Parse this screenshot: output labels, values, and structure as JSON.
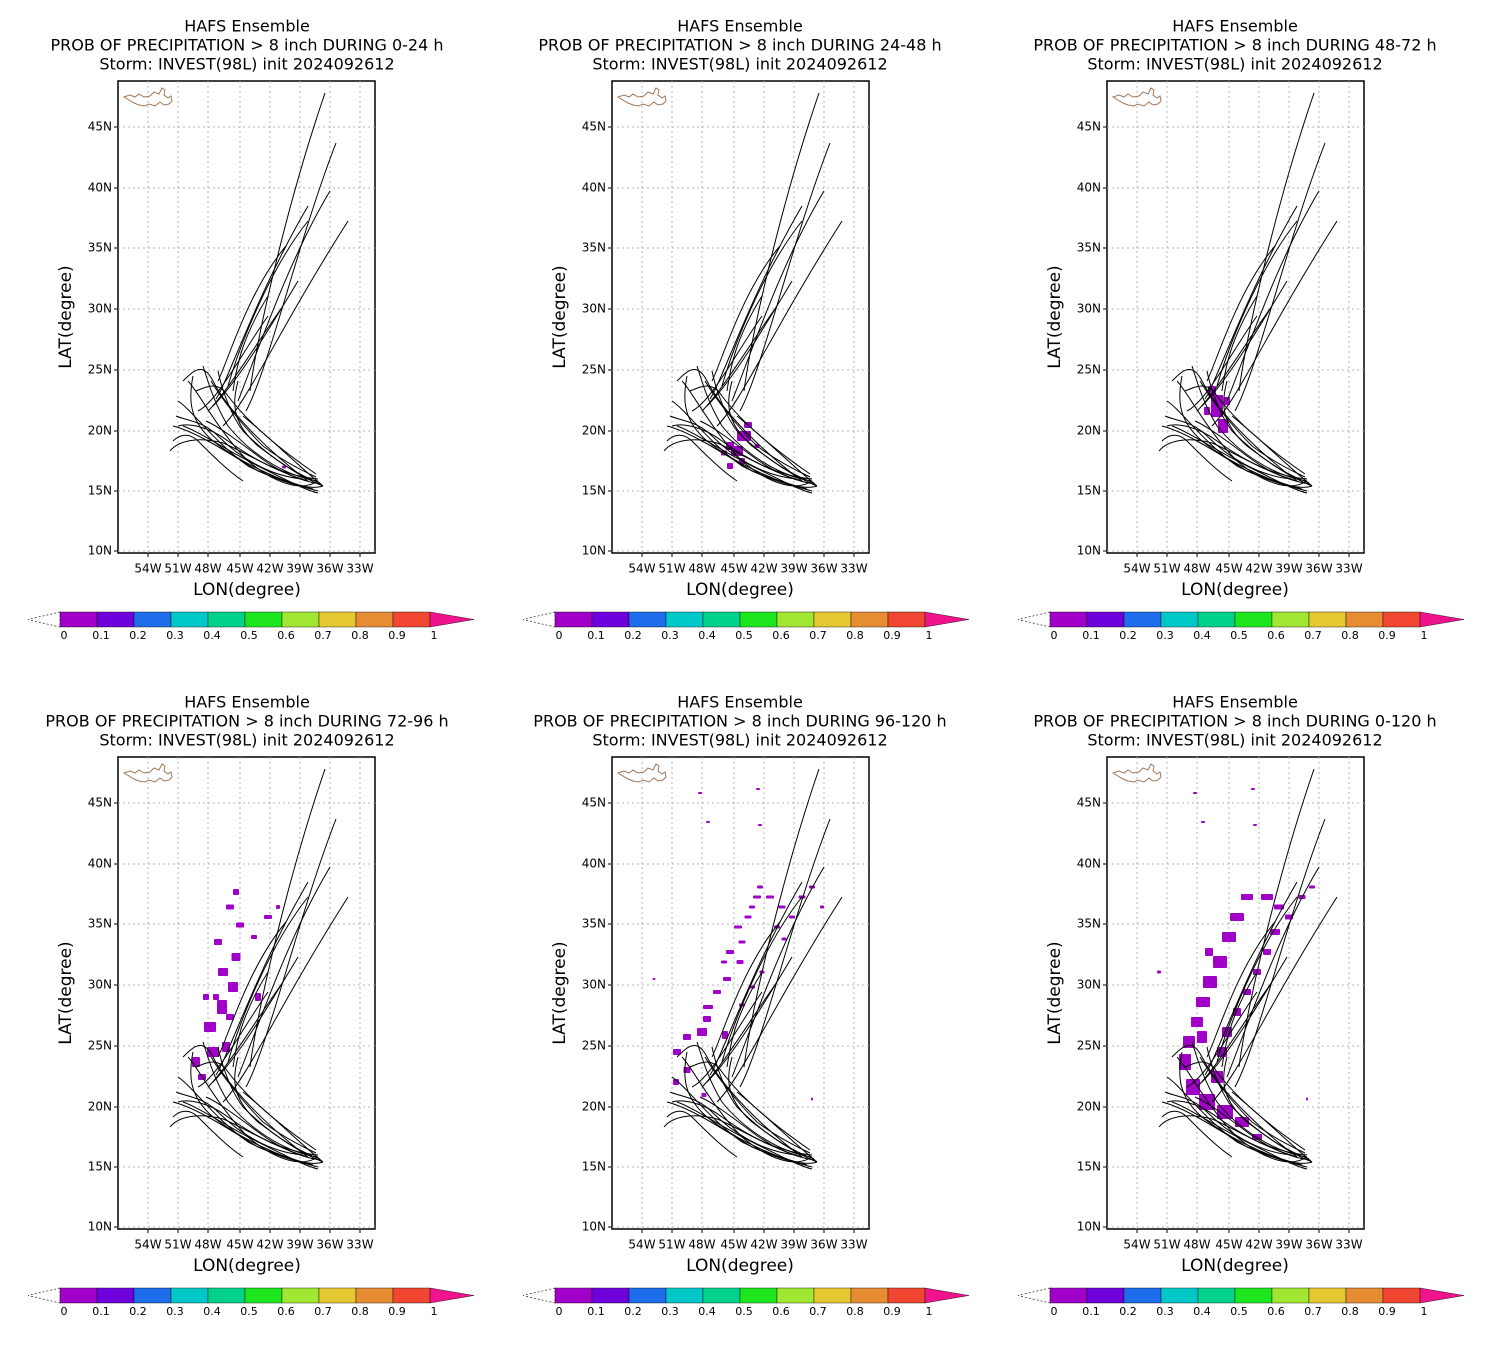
{
  "colorbar": {
    "labels": [
      "0",
      "0.1",
      "0.2",
      "0.3",
      "0.4",
      "0.5",
      "0.6",
      "0.7",
      "0.8",
      "0.9",
      "1"
    ],
    "colors": [
      "#a000c8",
      "#6e00dc",
      "#1e6eeb",
      "#00c8c8",
      "#00d28c",
      "#1ee61e",
      "#a0e632",
      "#e6c832",
      "#e68c32",
      "#f04632"
    ],
    "over_color": "#f0148c",
    "under_color": "#ffffff"
  },
  "lat_ticks": [
    "10N",
    "15N",
    "20N",
    "25N",
    "30N",
    "35N",
    "40N",
    "45N"
  ],
  "lon_ticks": [
    "54W",
    "51W",
    "48W",
    "45W",
    "42W",
    "39W",
    "36W",
    "33W"
  ],
  "panels": [
    {
      "line1": "HAFS Ensemble",
      "line2": "PROB OF PRECIPITATION > 8 inch DURING  0-24 h",
      "line3": "Storm: INVEST(98L) init 2024092612",
      "xlabel": "LON(degree)",
      "ylabel": "LAT(degree)",
      "swath": "p1"
    },
    {
      "line1": "HAFS Ensemble",
      "line2": "PROB OF PRECIPITATION > 8 inch DURING 24-48 h",
      "line3": "Storm: INVEST(98L) init 2024092612",
      "xlabel": "LON(degree)",
      "ylabel": "LAT(degree)",
      "swath": "p2"
    },
    {
      "line1": "HAFS Ensemble",
      "line2": "PROB OF PRECIPITATION > 8 inch DURING 48-72 h",
      "line3": "Storm: INVEST(98L) init 2024092612",
      "xlabel": "LON(degree)",
      "ylabel": "LAT(degree)",
      "swath": "p3"
    },
    {
      "line1": "HAFS Ensemble",
      "line2": "PROB OF PRECIPITATION > 8 inch DURING 72-96 h",
      "line3": "Storm: INVEST(98L) init 2024092612",
      "xlabel": "LON(degree)",
      "ylabel": "LAT(degree)",
      "swath": "p4"
    },
    {
      "line1": "HAFS Ensemble",
      "line2": "PROB OF PRECIPITATION > 8 inch DURING 96-120 h",
      "line3": "Storm: INVEST(98L) init 2024092612",
      "xlabel": "LON(degree)",
      "ylabel": "LAT(degree)",
      "swath": "p5"
    },
    {
      "line1": "HAFS Ensemble",
      "line2": "PROB OF PRECIPITATION > 8 inch DURING 0-120 h",
      "line3": "Storm: INVEST(98L) init 2024092612",
      "xlabel": "LON(degree)",
      "ylabel": "LAT(degree)",
      "swath": "p6"
    }
  ]
}
